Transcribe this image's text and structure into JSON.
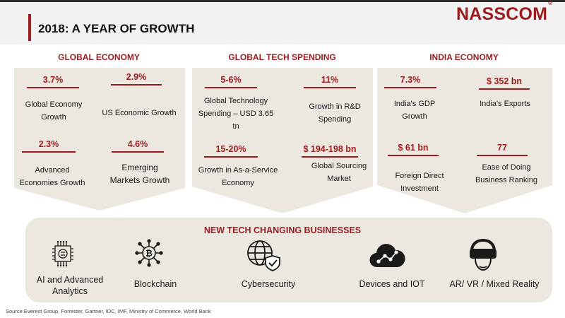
{
  "header": {
    "title": "2018: A YEAR OF GROWTH",
    "logo_text": "NASSCOM",
    "logo_mark": "®"
  },
  "columns": {
    "global_economy": {
      "title": "GLOBAL ECONOMY",
      "stats": [
        {
          "value": "3.7%",
          "label": "Global Economy Growth"
        },
        {
          "value": "2.9%",
          "label": "US Economic Growth"
        },
        {
          "value": "2.3%",
          "label": "Advanced Economies Growth"
        },
        {
          "value": "4.6%",
          "label": "Emerging Markets Growth"
        }
      ]
    },
    "global_tech": {
      "title": "GLOBAL TECH SPENDING",
      "stats": [
        {
          "value": "5-6%",
          "label": "Global Technology Spending – USD 3.65 tn"
        },
        {
          "value": "11%",
          "label": "Growth in R&D Spending"
        },
        {
          "value": "15-20%",
          "label": "Growth in As-a-Service Economy"
        },
        {
          "value": "$ 194-198 bn",
          "label": "Global Sourcing Market"
        }
      ]
    },
    "india_economy": {
      "title": "INDIA ECONOMY",
      "stats": [
        {
          "value": "7.3%",
          "label": "India's GDP Growth"
        },
        {
          "value": "$ 352 bn",
          "label": "India's Exports"
        },
        {
          "value": "$ 61 bn",
          "label": "Foreign Direct Investment"
        },
        {
          "value": "77",
          "label": "Ease of Doing Business Ranking"
        }
      ]
    }
  },
  "new_tech": {
    "title": "NEW TECH CHANGING BUSINESSES",
    "items": [
      {
        "label": "AI and Advanced Analytics",
        "icon": "ai-chip-icon"
      },
      {
        "label": "Blockchain",
        "icon": "blockchain-icon"
      },
      {
        "label": "Cybersecurity",
        "icon": "globe-shield-icon"
      },
      {
        "label": "Devices and IOT",
        "icon": "cloud-network-icon"
      },
      {
        "label": "AR/ VR / Mixed Reality",
        "icon": "vr-headset-icon"
      }
    ]
  },
  "source": "Source:Everest Group, Forrester, Gartner, IDC, IMF, Ministry of Commerce, World Bank",
  "colors": {
    "accent": "#9b1c1f",
    "panel": "#ece7df",
    "header_band": "#f2f2f2"
  }
}
